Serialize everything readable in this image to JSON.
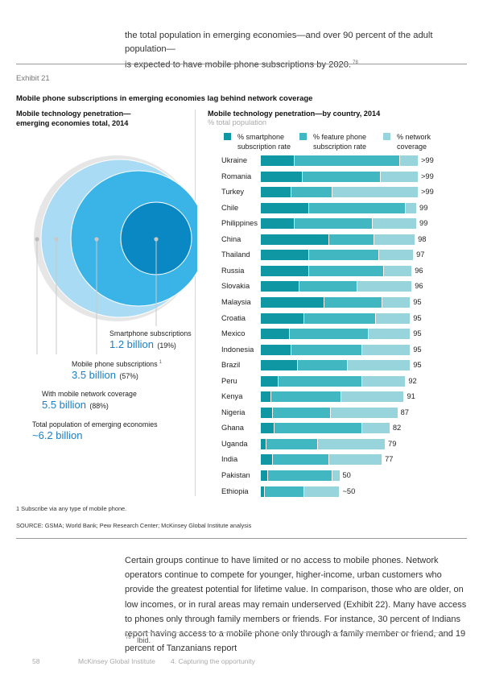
{
  "intro": {
    "line1": "the total population in emerging economies—and over 90 percent of the adult population—",
    "line2": "is expected to have mobile phone subscriptions by 2020.",
    "footnote_ref": "78"
  },
  "exhibit": {
    "label": "Exhibit 21",
    "title": "Mobile phone subscriptions in emerging economies lag behind network coverage"
  },
  "left_panel": {
    "title_line1": "Mobile technology penetration—",
    "title_line2": "emerging economies total, 2014",
    "layers": [
      {
        "label": "Total population of emerging economies",
        "value": "~6.2 billion",
        "pct": "",
        "color": "#e6e6e6"
      },
      {
        "label": "With mobile network coverage",
        "value": "5.5 billion",
        "pct": "(88%)",
        "color": "#a9dbf4"
      },
      {
        "label": "Mobile phone subscriptions",
        "label_sup": "1",
        "value": "3.5 billion",
        "pct": "(57%)",
        "color": "#3ab4e6"
      },
      {
        "label": "Smartphone subscriptions",
        "value": "1.2 billion",
        "pct": "(19%)",
        "color": "#0a88c4"
      }
    ]
  },
  "chart_data": {
    "type": "bar",
    "orientation": "horizontal",
    "stacked": "overlapping-cumulative",
    "title": "Mobile technology penetration—by country, 2014",
    "subtitle": "% total population",
    "legend": [
      {
        "name": "% smartphone subscription rate",
        "line1": "% smartphone",
        "line2": "subscription rate",
        "color": "#0f97a3"
      },
      {
        "name": "% feature phone subscription rate",
        "line1": "% feature phone",
        "line2": "subscription rate",
        "color": "#41b7c1"
      },
      {
        "name": "% network coverage",
        "line1": "% network",
        "line2": "coverage",
        "color": "#97d4dc"
      }
    ],
    "legend_position": "top",
    "xlim": [
      0,
      100
    ],
    "categories": [
      "Ukraine",
      "Romania",
      "Turkey",
      "Chile",
      "Philippines",
      "China",
      "Thailand",
      "Russia",
      "Slovakia",
      "Malaysia",
      "Croatia",
      "Mexico",
      "Indonesia",
      "Brazil",
      "Peru",
      "Kenya",
      "Nigeria",
      "Ghana",
      "Uganda",
      "India",
      "Pakistan",
      "Ethiopia"
    ],
    "series": [
      {
        "name": "% smartphone subscription rate",
        "values": [
          21,
          26,
          19,
          30,
          21,
          43,
          30,
          30,
          24,
          40,
          27,
          18,
          19,
          23,
          11,
          6,
          7,
          8,
          3,
          7,
          4,
          2
        ]
      },
      {
        "name": "% feature phone subscription rate",
        "values": [
          67,
          50,
          26,
          62,
          50,
          29,
          45,
          48,
          37,
          37,
          46,
          50,
          45,
          32,
          53,
          45,
          37,
          56,
          33,
          36,
          41,
          25
        ]
      },
      {
        "name": "% network coverage",
        "values": [
          100,
          100,
          100,
          99,
          99,
          98,
          97,
          96,
          96,
          95,
          95,
          95,
          95,
          95,
          92,
          91,
          87,
          82,
          79,
          77,
          50,
          50
        ]
      }
    ],
    "coverage_labels": [
      ">99",
      ">99",
      ">99",
      "99",
      "99",
      "98",
      "97",
      "96",
      "96",
      "95",
      "95",
      "95",
      "95",
      "95",
      "92",
      "91",
      "87",
      "82",
      "79",
      "77",
      "50",
      "~50"
    ]
  },
  "footnotes": {
    "note1": "1  Subscribe via any type of mobile phone.",
    "source": "SOURCE:  GSMA; World Bank; Pew Research Center; McKinsey Global Institute analysis"
  },
  "body": {
    "paragraph": "Certain groups continue to have limited or no access to mobile phones. Network operators continue to compete for younger, higher-income, urban customers who provide the greatest potential for lifetime value. In comparison, those who are older, on low incomes, or in rural areas may remain underserved (Exhibit 22). Many have access to phones only through family members or friends. For instance, 30 percent of Indians report having access to a mobile phone only through a family member or friend, and 19 percent of Tanzanians report"
  },
  "page_footnote": {
    "ref": "78",
    "text": "Ibid."
  },
  "page_footer": {
    "page_number": "58",
    "publisher": "McKinsey Global Institute",
    "section": "4. Capturing the opportunity"
  }
}
